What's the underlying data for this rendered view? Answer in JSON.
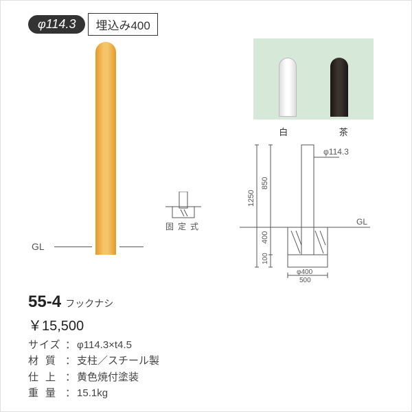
{
  "header": {
    "diameter": "φ114.3",
    "embed": "埋込み400"
  },
  "main_bollard": {
    "gl_label": "GL",
    "color": "#f0b94a"
  },
  "fixed_icon": {
    "label": "固定式",
    "stroke": "#555555"
  },
  "swatches": {
    "bg": "#d6e8d8",
    "items": [
      {
        "label": "白"
      },
      {
        "label": "茶"
      }
    ]
  },
  "dims": {
    "phi": "φ114.3",
    "h_above": "850",
    "h_total": "1250",
    "gl": "GL",
    "h_embed": "400",
    "h_base": "100",
    "w_post": "φ400",
    "w_base": "500",
    "stroke": "#555555"
  },
  "product": {
    "model": "55-4",
    "model_suffix": "フックナシ",
    "price": "￥15,500",
    "specs": [
      {
        "label": "サイズ",
        "value": "φ114.3×t4.5",
        "cls": "spec-label2"
      },
      {
        "label": "材質",
        "value": "支柱／スチール製",
        "cls": "spec-label"
      },
      {
        "label": "仕上",
        "value": "黄色焼付塗装",
        "cls": "spec-label"
      },
      {
        "label": "重量",
        "value": "15.1kg",
        "cls": "spec-label"
      }
    ]
  }
}
